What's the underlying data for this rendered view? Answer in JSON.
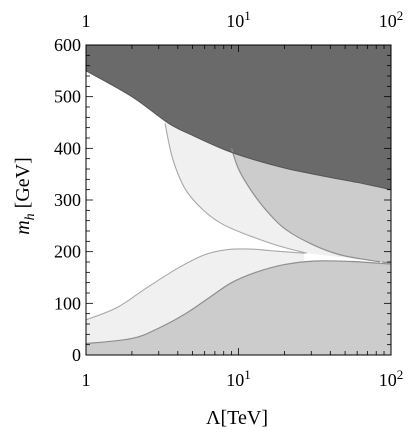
{
  "chart_data": {
    "type": "region-plot",
    "xlabel": "Λ[TeV]",
    "ylabel_main": "m",
    "ylabel_sub": "h",
    "ylabel_unit": " [GeV]",
    "x_scale": "log",
    "xlim": [
      1,
      100
    ],
    "ylim": [
      0,
      600
    ],
    "x_ticks_bottom": [
      {
        "value": 1,
        "base": "1",
        "exp": ""
      },
      {
        "value": 10,
        "base": "10",
        "exp": "1"
      },
      {
        "value": 100,
        "base": "10",
        "exp": "2"
      }
    ],
    "x_ticks_top": [
      {
        "value": 1,
        "base": "1",
        "exp": ""
      },
      {
        "value": 10,
        "base": "10",
        "exp": "1"
      },
      {
        "value": 100,
        "base": "10",
        "exp": "2"
      }
    ],
    "y_ticks": [
      {
        "value": 0,
        "label": "0"
      },
      {
        "value": 100,
        "label": "100"
      },
      {
        "value": 200,
        "label": "200"
      },
      {
        "value": 300,
        "label": "300"
      },
      {
        "value": 400,
        "label": "400"
      },
      {
        "value": 500,
        "label": "500"
      },
      {
        "value": 600,
        "label": "600"
      }
    ],
    "colors": {
      "dark_region": "#6a6a6a",
      "medium_region": "#cccccc",
      "light_region": "#f0f0f0",
      "medium_edge": "#8e8e8e",
      "light_edge": "#a8a8a8",
      "frame": "#000000"
    },
    "regions": [
      {
        "name": "upper-excluded",
        "shade": "dark",
        "boundary": [
          [
            1,
            550
          ],
          [
            2,
            500
          ],
          [
            3.5,
            448
          ],
          [
            5,
            425
          ],
          [
            8,
            398
          ],
          [
            12,
            380
          ],
          [
            20,
            362
          ],
          [
            35,
            347
          ],
          [
            60,
            334
          ],
          [
            100,
            320
          ]
        ]
      },
      {
        "name": "upper-band-medium",
        "shade": "medium",
        "inner_edge": [
          [
            9,
            400
          ],
          [
            10,
            360
          ],
          [
            12,
            320
          ],
          [
            15,
            282
          ],
          [
            20,
            245
          ],
          [
            30,
            215
          ],
          [
            45,
            195
          ],
          [
            70,
            184
          ],
          [
            100,
            178
          ]
        ]
      },
      {
        "name": "upper-band-light",
        "shade": "light",
        "inner_edge": [
          [
            3.3,
            448
          ],
          [
            3.7,
            380
          ],
          [
            4.5,
            320
          ],
          [
            6,
            278
          ],
          [
            8,
            252
          ],
          [
            12,
            230
          ],
          [
            18,
            212
          ],
          [
            28,
            197
          ]
        ]
      },
      {
        "name": "lower-band-light",
        "shade": "light",
        "outer_edge": [
          [
            1,
            68
          ],
          [
            1.6,
            92
          ],
          [
            2.5,
            130
          ],
          [
            4,
            168
          ],
          [
            6,
            194
          ],
          [
            8.5,
            204
          ],
          [
            12,
            205
          ],
          [
            16,
            202
          ],
          [
            22,
            199
          ],
          [
            27,
            197
          ]
        ]
      },
      {
        "name": "lower-band-medium",
        "shade": "medium",
        "outer_edge": [
          [
            1,
            22
          ],
          [
            2,
            32
          ],
          [
            3,
            52
          ],
          [
            4.5,
            80
          ],
          [
            6.5,
            112
          ],
          [
            9,
            140
          ],
          [
            13,
            160
          ],
          [
            20,
            175
          ],
          [
            32,
            182
          ],
          [
            55,
            181
          ],
          [
            80,
            178
          ],
          [
            100,
            176
          ]
        ]
      }
    ]
  }
}
